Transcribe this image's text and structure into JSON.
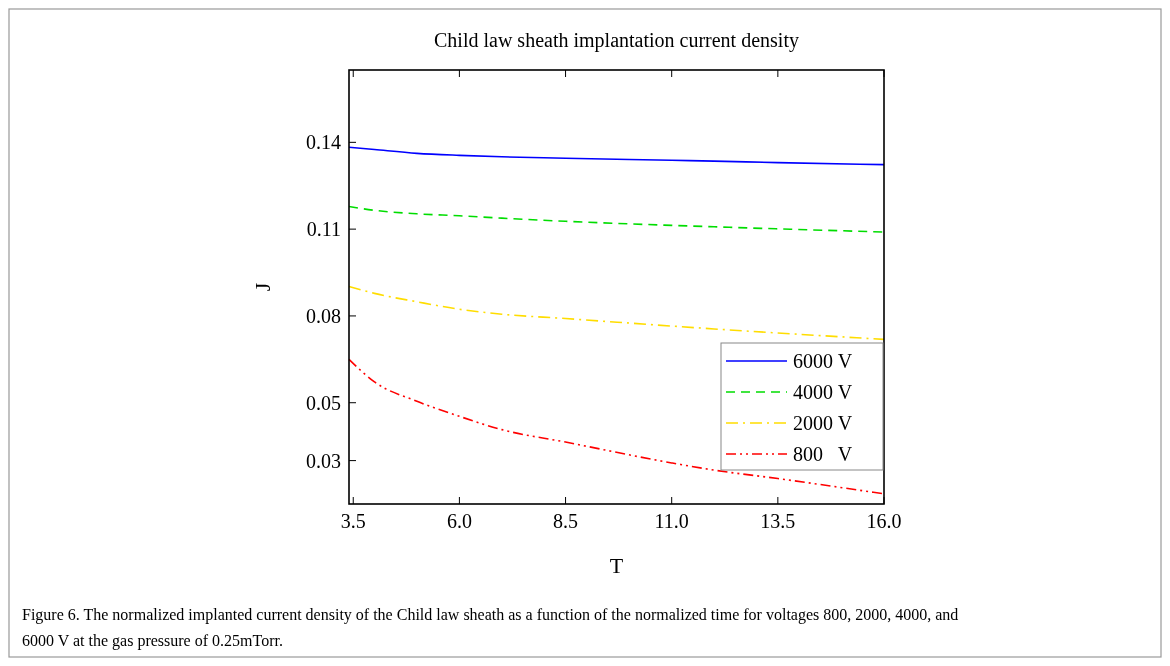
{
  "chart_data": {
    "type": "line",
    "title": "Child law sheath implantation current density",
    "xlabel": "T",
    "ylabel": "J",
    "xlim": [
      3.4,
      16.0
    ],
    "xticks": [
      {
        "value": 3.5,
        "label": "3.5"
      },
      {
        "value": 6,
        "label": "6.0"
      },
      {
        "value": 8.5,
        "label": "8.5"
      },
      {
        "value": 11,
        "label": "11.0"
      },
      {
        "value": 13.5,
        "label": "13.5"
      },
      {
        "value": 16,
        "label": "16.0"
      }
    ],
    "ylim": [
      0.015,
      0.165
    ],
    "yticks": [
      0.14,
      0.11,
      0.08,
      0.05,
      0.03
    ],
    "x": [
      3.4,
      4.0,
      5.0,
      6.0,
      7.0,
      8.5,
      11.0,
      12.0,
      13.5,
      16.0
    ],
    "series": [
      {
        "name": "6000 V",
        "color": "#0000ff",
        "line_style": "solid",
        "values": [
          0.1383,
          0.1375,
          0.1362,
          0.1355,
          0.135,
          0.1345,
          0.1338,
          0.1335,
          0.133,
          0.1323
        ]
      },
      {
        "name": "4000 V",
        "color": "#00dd00",
        "line_style": "dashed",
        "values": [
          0.1178,
          0.1165,
          0.1153,
          0.1146,
          0.1138,
          0.1127,
          0.1113,
          0.1108,
          0.1101,
          0.109
        ]
      },
      {
        "name": "2000 V",
        "color": "#ffdd00",
        "line_style": "dashdot",
        "values": [
          0.0902,
          0.0878,
          0.0849,
          0.0823,
          0.0806,
          0.0791,
          0.0765,
          0.0755,
          0.0741,
          0.0719
        ]
      },
      {
        "name": "800   V",
        "color": "#ff0000",
        "line_style": "dashdotdot",
        "values": [
          0.065,
          0.0572,
          0.0505,
          0.0453,
          0.0407,
          0.0364,
          0.0292,
          0.0267,
          0.0238,
          0.0185
        ]
      }
    ],
    "legend": "bottom right",
    "grid": false,
    "annotations": [
      "Figure 6. The normalized implanted current density of the Child law sheath as a function of the normalized time for voltages 800, 2000, 4000, and 6000 V at the gas pressure of 0.25mTorr."
    ]
  }
}
